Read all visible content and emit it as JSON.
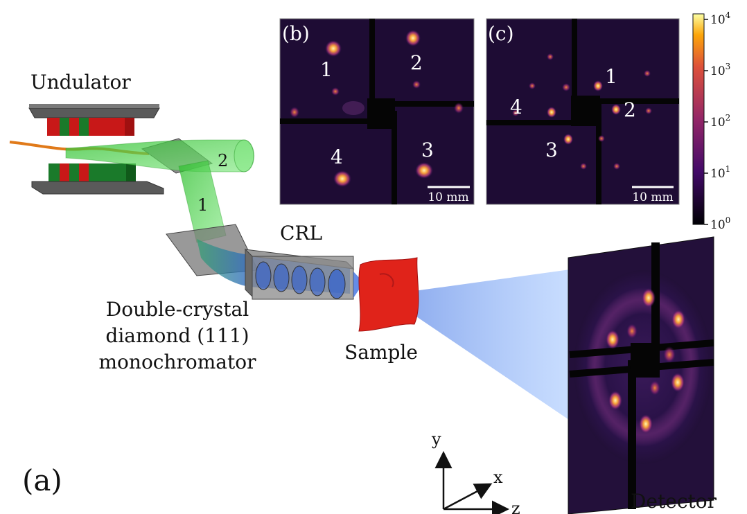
{
  "labels": {
    "undulator": "Undulator",
    "mono_line1": "Double-crystal",
    "mono_line2": "diamond (111)",
    "mono_line3": "monochromator",
    "crl": "CRL",
    "sample": "Sample",
    "detector": "Detector",
    "panel_a": "(a)",
    "beam1": "1",
    "beam2": "2"
  },
  "axes": {
    "y": "y",
    "x": "x",
    "z": "z"
  },
  "panel_b": {
    "tag": "(b)",
    "spots": [
      "1",
      "2",
      "3",
      "4"
    ],
    "scalebar": "10 mm"
  },
  "panel_c": {
    "tag": "(c)",
    "spots": [
      "1",
      "2",
      "3",
      "4"
    ],
    "scalebar": "10 mm"
  },
  "colorbar": {
    "scale": "log",
    "base": "10",
    "exponents": [
      "4",
      "3",
      "2",
      "1",
      "0"
    ]
  },
  "colors": {
    "beam_green": "#3fd43f",
    "beam_blue": "#3f7fe0",
    "sample_red": "#e0231a",
    "detector_bg": "#23103a",
    "magnet_red": "#c81818",
    "magnet_green": "#1a7a2a"
  }
}
